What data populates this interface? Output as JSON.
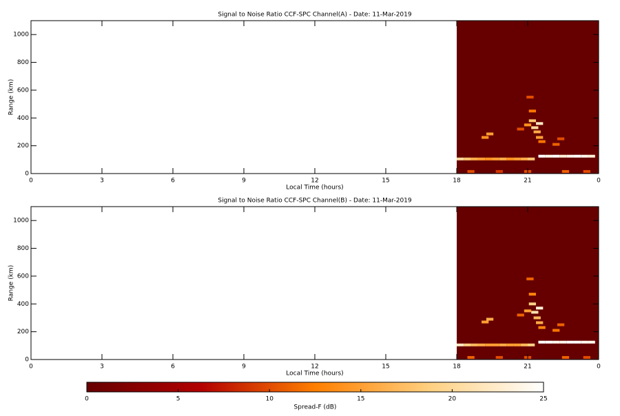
{
  "chart_data": [
    {
      "type": "heatmap",
      "title": "Signal to Noise Ratio CCF-SPC Channel(A) - Date: 11-Mar-2019",
      "x_label": "Local Time (hours)",
      "y_label": "Range (km)",
      "xlim": [
        0,
        24
      ],
      "xticks": [
        0,
        3,
        6,
        9,
        12,
        15,
        18,
        21,
        {
          "value": 24,
          "label": "0"
        }
      ],
      "ylim": [
        0,
        1100
      ],
      "yticks": [
        0,
        200,
        400,
        600,
        800,
        1000
      ],
      "data_xlim": [
        18,
        24
      ],
      "echoes": {
        "x": [
          18.15,
          18.45,
          18.75,
          19.05,
          19.35,
          19.65,
          19.95,
          20.25,
          20.55,
          20.85,
          21.15,
          21.6,
          21.9,
          22.2,
          22.5,
          22.8,
          23.1,
          23.4,
          23.7,
          18.6,
          19.8,
          21.0,
          22.6,
          23.5,
          19.2,
          19.4,
          20.7,
          21.0,
          21.2,
          21.3,
          21.4,
          21.5,
          21.6,
          21.2,
          21.1,
          21.5,
          22.4,
          22.2
        ],
        "range": [
          105,
          105,
          105,
          105,
          105,
          105,
          105,
          105,
          105,
          105,
          105,
          125,
          125,
          125,
          125,
          125,
          125,
          125,
          125,
          15,
          15,
          15,
          15,
          15,
          260,
          285,
          320,
          350,
          380,
          330,
          300,
          360,
          230,
          450,
          550,
          260,
          250,
          210
        ],
        "values": [
          20,
          18,
          16,
          15,
          14,
          15,
          16,
          14,
          15,
          16,
          18,
          25,
          24,
          25,
          23,
          24,
          25,
          24,
          23,
          10,
          9,
          10,
          11,
          10,
          14,
          15,
          10,
          14,
          18,
          20,
          16,
          22,
          12,
          12,
          10,
          15,
          10,
          11
        ]
      }
    },
    {
      "type": "heatmap",
      "title": "Signal to Noise Ratio CCF-SPC Channel(B) - Date: 11-Mar-2019",
      "x_label": "Local Time (hours)",
      "y_label": "Range (km)",
      "xlim": [
        0,
        24
      ],
      "xticks": [
        0,
        3,
        6,
        9,
        12,
        15,
        18,
        21,
        {
          "value": 24,
          "label": "0"
        }
      ],
      "ylim": [
        0,
        1100
      ],
      "yticks": [
        0,
        200,
        400,
        600,
        800,
        1000
      ],
      "data_xlim": [
        18,
        24
      ],
      "echoes": {
        "x": [
          18.15,
          18.45,
          18.75,
          19.05,
          19.35,
          19.65,
          19.95,
          20.25,
          20.55,
          20.85,
          21.15,
          21.6,
          21.9,
          22.2,
          22.5,
          22.8,
          23.1,
          23.4,
          23.7,
          18.6,
          19.8,
          21.0,
          22.6,
          23.5,
          19.2,
          19.4,
          20.7,
          21.0,
          21.2,
          21.3,
          21.4,
          21.5,
          21.6,
          21.2,
          21.1,
          21.5,
          22.4,
          22.2
        ],
        "range": [
          105,
          105,
          105,
          105,
          105,
          105,
          105,
          105,
          105,
          105,
          105,
          125,
          125,
          125,
          125,
          125,
          125,
          125,
          125,
          15,
          15,
          15,
          15,
          15,
          270,
          290,
          320,
          350,
          400,
          340,
          300,
          370,
          230,
          470,
          580,
          265,
          250,
          210
        ],
        "values": [
          22,
          19,
          17,
          16,
          15,
          15,
          16,
          15,
          15,
          17,
          19,
          25,
          25,
          24,
          24,
          25,
          25,
          24,
          24,
          11,
          10,
          10,
          11,
          10,
          15,
          16,
          11,
          15,
          19,
          21,
          17,
          23,
          13,
          13,
          11,
          16,
          11,
          12
        ]
      }
    },
    {
      "type": "colorbar",
      "label": "Spread-F (dB)",
      "clim": [
        0,
        25
      ],
      "cticks": [
        0,
        5,
        10,
        15,
        20,
        25
      ],
      "colormap": [
        "#660000",
        "#b30000",
        "#ff7f00",
        "#ffd080",
        "#ffffff"
      ]
    }
  ]
}
